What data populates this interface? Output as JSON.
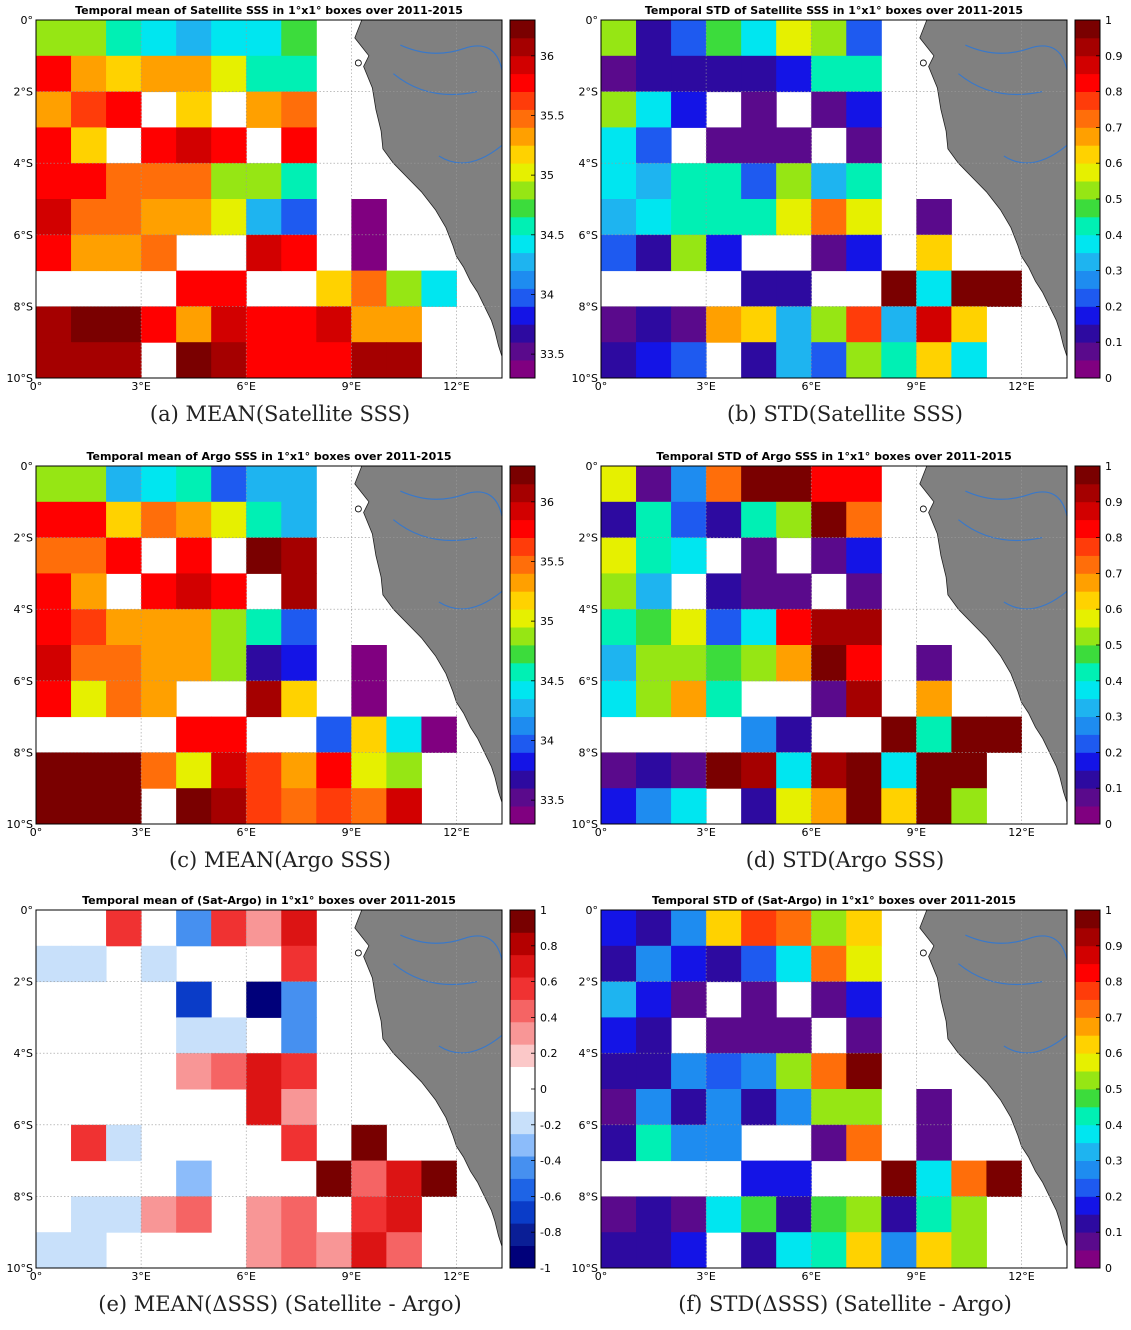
{
  "x_ticks": [
    "0°",
    "3°E",
    "6°E",
    "9°E",
    "12°E"
  ],
  "y_ticks": [
    "0°",
    "2°S",
    "4°S",
    "6°S",
    "8°S",
    "10°S"
  ],
  "chart_data": [
    {
      "type": "heatmap",
      "title": "Temporal mean of Satellite SSS in 1°x1° boxes over 2011-2015",
      "caption": "(a) MEAN(Satellite SSS)",
      "colormap": "jet",
      "clim": [
        33.3,
        36.3
      ],
      "cbar_ticks": [
        "33.5",
        "34",
        "34.5",
        "35",
        "35.5",
        "36"
      ],
      "cbar_tick_values": [
        33.5,
        34,
        34.5,
        35,
        35.5,
        36
      ],
      "x_range_deg": [
        0,
        13.3
      ],
      "y_range_deg": [
        0,
        10
      ],
      "grid_rows": [
        "0-1°S",
        "1-2°S",
        "2-3°S",
        "3-4°S",
        "4-5°S",
        "5-6°S",
        "6-7°S",
        "7-8°S",
        "8-9°S",
        "9-10°S"
      ],
      "grid_cols": [
        "0-1°E",
        "1-2°E",
        "2-3°E",
        "3-4°E",
        "4-5°E",
        "5-6°E",
        "6-7°E",
        "7-8°E",
        "8-9°E",
        "9-10°E",
        "10-11°E",
        "11-12°E"
      ],
      "values": [
        [
          34.8,
          34.8,
          34.6,
          34.4,
          34.2,
          34.4,
          34.4,
          34.7,
          null,
          null,
          null,
          null
        ],
        [
          35.7,
          35.3,
          35.1,
          35.3,
          35.3,
          35.0,
          34.6,
          34.6,
          null,
          null,
          null,
          null
        ],
        [
          35.3,
          35.6,
          35.7,
          null,
          35.1,
          null,
          35.3,
          35.5,
          null,
          null,
          null,
          null
        ],
        [
          35.8,
          35.1,
          null,
          35.7,
          35.9,
          35.7,
          null,
          35.7,
          null,
          null,
          null,
          null
        ],
        [
          35.8,
          35.7,
          35.4,
          35.5,
          35.5,
          34.8,
          34.8,
          34.5,
          null,
          null,
          null,
          null
        ],
        [
          35.9,
          35.5,
          35.5,
          35.3,
          35.3,
          35.0,
          34.2,
          34.0,
          null,
          33.4,
          null,
          null
        ],
        [
          35.8,
          35.3,
          35.3,
          35.5,
          null,
          null,
          35.9,
          35.7,
          null,
          33.4,
          null,
          null
        ],
        [
          null,
          null,
          null,
          null,
          35.7,
          35.7,
          null,
          null,
          35.1,
          35.5,
          34.9,
          34.4
        ],
        [
          36.1,
          36.2,
          36.2,
          35.7,
          35.3,
          35.9,
          35.8,
          35.7,
          35.9,
          35.3,
          35.3,
          null
        ],
        [
          36.0,
          36.0,
          36.0,
          null,
          36.2,
          36.1,
          35.8,
          35.8,
          35.8,
          36.0,
          36.0,
          null
        ]
      ]
    },
    {
      "type": "heatmap",
      "title": "Temporal STD of Satellite SSS in 1°x1° boxes over 2011-2015",
      "caption": "(b) STD(Satellite SSS)",
      "colormap": "jet",
      "clim": [
        0,
        1
      ],
      "cbar_ticks": [
        "0",
        "0.1",
        "0.2",
        "0.3",
        "0.4",
        "0.5",
        "0.6",
        "0.7",
        "0.8",
        "0.9",
        "1"
      ],
      "cbar_tick_values": [
        0,
        0.1,
        0.2,
        0.3,
        0.4,
        0.5,
        0.6,
        0.7,
        0.8,
        0.9,
        1
      ],
      "x_range_deg": [
        0,
        13.3
      ],
      "y_range_deg": [
        0,
        10
      ],
      "values": [
        [
          0.5,
          0.1,
          0.2,
          0.45,
          0.35,
          0.55,
          0.5,
          0.2,
          null,
          null,
          null,
          null
        ],
        [
          0.05,
          0.1,
          0.1,
          0.1,
          0.1,
          0.15,
          0.4,
          0.4,
          null,
          null,
          null,
          null
        ],
        [
          0.5,
          0.35,
          0.15,
          null,
          0.05,
          null,
          0.05,
          0.15,
          null,
          null,
          null,
          null
        ],
        [
          0.35,
          0.2,
          null,
          0.05,
          0.05,
          0.05,
          null,
          0.05,
          null,
          null,
          null,
          null
        ],
        [
          0.35,
          0.3,
          0.4,
          0.4,
          0.2,
          0.5,
          0.3,
          0.4,
          null,
          null,
          null,
          null
        ],
        [
          0.3,
          0.35,
          0.4,
          0.4,
          0.4,
          0.55,
          0.7,
          0.55,
          null,
          0.05,
          null,
          null
        ],
        [
          0.2,
          0.1,
          0.5,
          0.15,
          null,
          null,
          0.05,
          0.15,
          null,
          0.6,
          null,
          null
        ],
        [
          null,
          null,
          null,
          null,
          0.1,
          0.1,
          null,
          null,
          0.95,
          0.35,
          0.95,
          0.95
        ],
        [
          0.05,
          0.1,
          0.05,
          0.65,
          0.6,
          0.3,
          0.5,
          0.75,
          0.3,
          0.85,
          0.6,
          null
        ],
        [
          0.1,
          0.15,
          0.2,
          null,
          0.1,
          0.3,
          0.2,
          0.5,
          0.4,
          0.6,
          0.35,
          null
        ]
      ]
    },
    {
      "type": "heatmap",
      "title": "Temporal mean of Argo SSS in 1°x1° boxes over 2011-2015",
      "caption": "(c) MEAN(Argo SSS)",
      "colormap": "jet",
      "clim": [
        33.3,
        36.3
      ],
      "cbar_ticks": [
        "33.5",
        "34",
        "34.5",
        "35",
        "35.5",
        "36"
      ],
      "cbar_tick_values": [
        33.5,
        34,
        34.5,
        35,
        35.5,
        36
      ],
      "x_range_deg": [
        0,
        13.3
      ],
      "y_range_deg": [
        0,
        10
      ],
      "values": [
        [
          34.8,
          34.8,
          34.3,
          34.4,
          34.6,
          34.0,
          34.3,
          34.3,
          null,
          null,
          null,
          null
        ],
        [
          35.7,
          35.7,
          35.2,
          35.5,
          35.3,
          35.0,
          34.6,
          34.3,
          null,
          null,
          null,
          null
        ],
        [
          35.5,
          35.5,
          35.8,
          null,
          35.8,
          null,
          36.2,
          36.0,
          null,
          null,
          null,
          null
        ],
        [
          35.7,
          35.3,
          null,
          35.7,
          35.9,
          35.8,
          null,
          36.0,
          null,
          null,
          null,
          null
        ],
        [
          35.8,
          35.6,
          35.3,
          35.3,
          35.3,
          34.8,
          34.5,
          33.9,
          null,
          null,
          null,
          null
        ],
        [
          35.9,
          35.5,
          35.5,
          35.3,
          35.3,
          34.8,
          33.7,
          33.8,
          null,
          33.4,
          null,
          null
        ],
        [
          35.8,
          35.0,
          35.5,
          35.3,
          null,
          null,
          36.0,
          35.1,
          null,
          33.4,
          null,
          null
        ],
        [
          null,
          null,
          null,
          null,
          35.8,
          35.7,
          null,
          null,
          34.0,
          35.1,
          34.4,
          33.4
        ],
        [
          36.2,
          36.2,
          36.2,
          35.5,
          35.0,
          35.9,
          35.6,
          35.3,
          35.7,
          35.0,
          34.8,
          null
        ],
        [
          36.2,
          36.2,
          36.2,
          null,
          36.2,
          36.1,
          35.6,
          35.5,
          35.6,
          35.5,
          35.9,
          null
        ]
      ]
    },
    {
      "type": "heatmap",
      "title": "Temporal STD of Argo SSS in 1°x1° boxes over 2011-2015",
      "caption": "(d) STD(Argo SSS)",
      "colormap": "jet",
      "clim": [
        0,
        1
      ],
      "cbar_ticks": [
        "0",
        "0.1",
        "0.2",
        "0.3",
        "0.4",
        "0.5",
        "0.6",
        "0.7",
        "0.8",
        "0.9",
        "1"
      ],
      "cbar_tick_values": [
        0,
        0.1,
        0.2,
        0.3,
        0.4,
        0.5,
        0.6,
        0.7,
        0.8,
        0.9,
        1
      ],
      "x_range_deg": [
        0,
        13.3
      ],
      "y_range_deg": [
        0,
        10
      ],
      "values": [
        [
          0.55,
          0.05,
          0.25,
          0.7,
          0.95,
          0.95,
          0.8,
          0.8,
          null,
          null,
          null,
          null
        ],
        [
          0.1,
          0.4,
          0.2,
          0.1,
          0.4,
          0.5,
          0.95,
          0.7,
          null,
          null,
          null,
          null
        ],
        [
          0.55,
          0.4,
          0.35,
          null,
          0.05,
          null,
          0.05,
          0.15,
          null,
          null,
          null,
          null
        ],
        [
          0.5,
          0.3,
          null,
          0.1,
          0.05,
          0.05,
          null,
          0.05,
          null,
          null,
          null,
          null
        ],
        [
          0.4,
          0.45,
          0.55,
          0.2,
          0.35,
          0.8,
          0.9,
          0.9,
          null,
          null,
          null,
          null
        ],
        [
          0.3,
          0.5,
          0.5,
          0.45,
          0.5,
          0.65,
          0.95,
          0.8,
          null,
          0.05,
          null,
          null
        ],
        [
          0.35,
          0.5,
          0.65,
          0.4,
          null,
          null,
          0.05,
          0.9,
          null,
          0.65,
          null,
          null
        ],
        [
          null,
          null,
          null,
          null,
          0.25,
          0.1,
          null,
          null,
          0.95,
          0.4,
          0.95,
          0.95
        ],
        [
          0.05,
          0.1,
          0.05,
          0.95,
          0.9,
          0.35,
          0.9,
          0.95,
          0.35,
          0.95,
          0.95,
          null
        ],
        [
          0.15,
          0.25,
          0.35,
          null,
          0.1,
          0.55,
          0.65,
          0.95,
          0.6,
          0.95,
          0.5,
          null
        ]
      ]
    },
    {
      "type": "heatmap",
      "title": "Temporal mean of (Sat-Argo) in 1°x1° boxes over 2011-2015",
      "caption": "(e) MEAN(ΔSSS) (Satellite - Argo)",
      "colormap": "diverging-blue-white-red",
      "clim": [
        -1,
        1
      ],
      "cbar_ticks": [
        "-1",
        "-0.8",
        "-0.6",
        "-0.4",
        "-0.2",
        "0",
        "0.2",
        "0.4",
        "0.6",
        "0.8",
        "1"
      ],
      "cbar_tick_values": [
        -1,
        -0.8,
        -0.6,
        -0.4,
        -0.2,
        0,
        0.2,
        0.4,
        0.6,
        0.8,
        1
      ],
      "x_range_deg": [
        0,
        13.3
      ],
      "y_range_deg": [
        0,
        10
      ],
      "values": [
        [
          null,
          null,
          0.5,
          null,
          -0.5,
          0.5,
          0.3,
          0.7,
          null,
          null,
          null,
          null
        ],
        [
          -0.2,
          -0.2,
          null,
          -0.2,
          null,
          null,
          null,
          0.5,
          null,
          null,
          null,
          null
        ],
        [
          null,
          null,
          null,
          null,
          -0.7,
          null,
          -0.9,
          -0.5,
          null,
          null,
          null,
          null
        ],
        [
          null,
          null,
          null,
          null,
          -0.2,
          -0.2,
          null,
          -0.5,
          null,
          null,
          null,
          null
        ],
        [
          null,
          null,
          null,
          null,
          0.3,
          0.4,
          0.7,
          0.5,
          null,
          null,
          null,
          null
        ],
        [
          null,
          null,
          null,
          null,
          null,
          null,
          0.7,
          0.3,
          null,
          null,
          null,
          null
        ],
        [
          null,
          0.5,
          -0.2,
          null,
          null,
          null,
          null,
          0.5,
          null,
          0.95,
          null,
          null
        ],
        [
          null,
          null,
          null,
          null,
          -0.3,
          null,
          null,
          null,
          0.95,
          0.4,
          0.7,
          0.95
        ],
        [
          null,
          -0.2,
          -0.2,
          0.3,
          0.4,
          null,
          0.3,
          0.4,
          null,
          0.5,
          0.7,
          null
        ],
        [
          -0.2,
          -0.2,
          null,
          null,
          null,
          null,
          0.3,
          0.4,
          0.3,
          0.7,
          0.4,
          null
        ]
      ]
    },
    {
      "type": "heatmap",
      "title": "Temporal STD of (Sat-Argo) in 1°x1° boxes over 2011-2015",
      "caption": "(f) STD(ΔSSS) (Satellite - Argo)",
      "colormap": "jet",
      "clim": [
        0,
        1
      ],
      "cbar_ticks": [
        "0",
        "0.1",
        "0.2",
        "0.3",
        "0.4",
        "0.5",
        "0.6",
        "0.7",
        "0.8",
        "0.9",
        "1"
      ],
      "cbar_tick_values": [
        0,
        0.1,
        0.2,
        0.3,
        0.4,
        0.5,
        0.6,
        0.7,
        0.8,
        0.9,
        1
      ],
      "x_range_deg": [
        0,
        13.3
      ],
      "y_range_deg": [
        0,
        10
      ],
      "values": [
        [
          0.15,
          0.1,
          0.25,
          0.6,
          0.75,
          0.7,
          0.5,
          0.6,
          null,
          null,
          null,
          null
        ],
        [
          0.1,
          0.25,
          0.15,
          0.1,
          0.2,
          0.35,
          0.7,
          0.55,
          null,
          null,
          null,
          null
        ],
        [
          0.3,
          0.15,
          0.05,
          null,
          0.05,
          null,
          0.05,
          0.15,
          null,
          null,
          null,
          null
        ],
        [
          0.15,
          0.1,
          null,
          0.05,
          0.05,
          0.05,
          null,
          0.05,
          null,
          null,
          null,
          null
        ],
        [
          0.1,
          0.1,
          0.25,
          0.2,
          0.25,
          0.5,
          0.7,
          0.95,
          null,
          null,
          null,
          null
        ],
        [
          0.05,
          0.25,
          0.1,
          0.25,
          0.1,
          0.25,
          0.5,
          0.5,
          null,
          0.05,
          null,
          null
        ],
        [
          0.1,
          0.4,
          0.25,
          0.25,
          null,
          null,
          0.05,
          0.7,
          null,
          0.05,
          null,
          null
        ],
        [
          null,
          null,
          null,
          null,
          0.15,
          0.15,
          null,
          null,
          0.95,
          0.35,
          0.7,
          0.95
        ],
        [
          0.05,
          0.1,
          0.05,
          0.35,
          0.45,
          0.1,
          0.45,
          0.5,
          0.1,
          0.4,
          0.5,
          null
        ],
        [
          0.1,
          0.1,
          0.15,
          null,
          0.1,
          0.35,
          0.4,
          0.6,
          0.25,
          0.6,
          0.5,
          null
        ]
      ]
    }
  ]
}
